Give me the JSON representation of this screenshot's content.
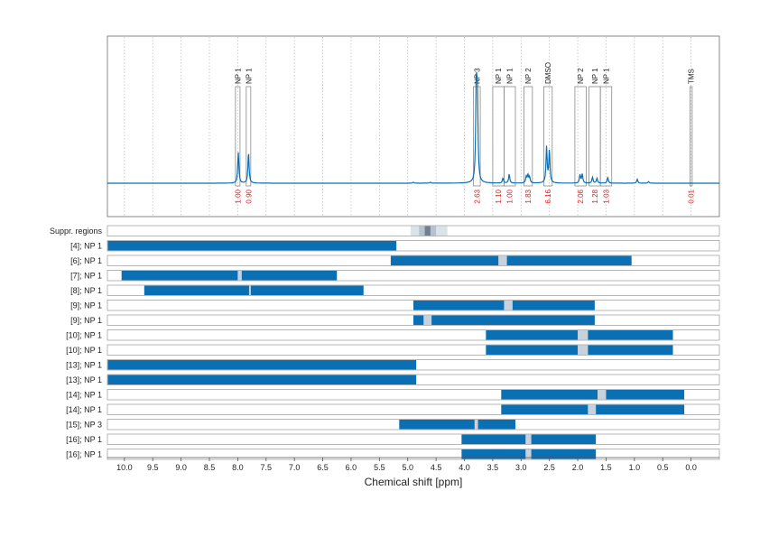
{
  "chart_data": {
    "type": "nmr-spectrum-with-range-bars",
    "xlabel": "Chemical shift [ppm]",
    "xlim": [
      10.3,
      -0.5
    ],
    "xticks": [
      10.0,
      9.5,
      9.0,
      8.5,
      8.0,
      7.5,
      7.0,
      6.5,
      6.0,
      5.5,
      5.0,
      4.5,
      4.0,
      3.5,
      3.0,
      2.5,
      2.0,
      1.5,
      1.0,
      0.5,
      0.0
    ],
    "x_reversed": true,
    "grid": "vertical dotted at each tick",
    "colors": {
      "spectrum": "#0a6fb3",
      "bar": "#0a6fb3",
      "suppressed": "#c8d2dc",
      "integral": "#e31a1c",
      "frame": "#888888"
    },
    "spectrum_peaks": [
      {
        "shift": 7.99,
        "height": 0.62
      },
      {
        "shift": 7.81,
        "height": 0.62
      },
      {
        "shift": 3.79,
        "height": 1.9
      },
      {
        "shift": 3.77,
        "height": 1.6
      },
      {
        "shift": 3.32,
        "height": 0.1
      },
      {
        "shift": 3.21,
        "height": 0.18
      },
      {
        "shift": 2.91,
        "height": 0.12
      },
      {
        "shift": 2.88,
        "height": 0.16
      },
      {
        "shift": 2.85,
        "height": 0.12
      },
      {
        "shift": 2.55,
        "height": 0.72
      },
      {
        "shift": 2.5,
        "height": 0.66
      },
      {
        "shift": 1.96,
        "height": 0.17
      },
      {
        "shift": 1.92,
        "height": 0.18
      },
      {
        "shift": 1.74,
        "height": 0.12
      },
      {
        "shift": 1.66,
        "height": 0.1
      },
      {
        "shift": 1.47,
        "height": 0.12
      },
      {
        "shift": 0.95,
        "height": 0.08
      },
      {
        "shift": 0.75,
        "height": 0.03
      },
      {
        "shift": 4.6,
        "height": 0.02
      },
      {
        "shift": 4.9,
        "height": 0.02
      }
    ],
    "annotations": [
      {
        "label": "NP 1",
        "integral": "1.00",
        "from": 8.04,
        "to": 7.96
      },
      {
        "label": "NP 1",
        "integral": "0.90",
        "from": 7.85,
        "to": 7.77
      },
      {
        "label": "NP 3",
        "integral": "2.63",
        "from": 3.84,
        "to": 3.72
      },
      {
        "label": "NP 1",
        "integral": "1.10",
        "from": 3.5,
        "to": 3.3
      },
      {
        "label": "NP 1",
        "integral": "1.00",
        "from": 3.3,
        "to": 3.1
      },
      {
        "label": "NP 2",
        "integral": "1.83",
        "from": 2.95,
        "to": 2.8
      },
      {
        "label": "DMSO",
        "integral": "6.16",
        "from": 2.6,
        "to": 2.45
      },
      {
        "label": "NP 2",
        "integral": "2.06",
        "from": 2.05,
        "to": 1.85
      },
      {
        "label": "NP 1",
        "integral": "1.28",
        "from": 1.8,
        "to": 1.6
      },
      {
        "label": "NP 1",
        "integral": "1.03",
        "from": 1.6,
        "to": 1.4
      },
      {
        "label": "TMS",
        "integral": "0.01",
        "from": 0.02,
        "to": -0.02
      }
    ],
    "suppressed_regions": {
      "label": "Suppr. regions",
      "light": [
        4.95,
        4.3
      ],
      "mid": [
        4.8,
        4.5
      ],
      "dark": [
        4.7,
        4.6
      ]
    },
    "range_rows": [
      {
        "label": "[4]; NP 1",
        "ranges": [
          [
            10.3,
            5.2
          ]
        ]
      },
      {
        "label": "[6]; NP 1",
        "ranges": [
          [
            5.3,
            3.4
          ],
          [
            3.25,
            1.05
          ]
        ]
      },
      {
        "label": "[7]; NP 1",
        "ranges": [
          [
            10.05,
            8.0
          ],
          [
            7.93,
            6.25
          ]
        ]
      },
      {
        "label": "[8]; NP 1",
        "ranges": [
          [
            9.65,
            7.8
          ],
          [
            7.77,
            5.78
          ]
        ]
      },
      {
        "label": "[9]; NP 1",
        "ranges": [
          [
            4.9,
            3.3
          ],
          [
            3.15,
            1.7
          ]
        ]
      },
      {
        "label": "[9]; NP 1",
        "ranges": [
          [
            4.9,
            4.72
          ],
          [
            4.58,
            1.7
          ]
        ]
      },
      {
        "label": "[10]; NP 1",
        "ranges": [
          [
            3.62,
            2.0
          ],
          [
            1.82,
            0.32
          ]
        ]
      },
      {
        "label": "[10]; NP 1",
        "ranges": [
          [
            3.62,
            2.0
          ],
          [
            1.82,
            0.32
          ]
        ]
      },
      {
        "label": "[13]; NP 1",
        "ranges": [
          [
            10.3,
            4.85
          ]
        ]
      },
      {
        "label": "[13]; NP 1",
        "ranges": [
          [
            10.3,
            4.85
          ]
        ]
      },
      {
        "label": "[14]; NP 1",
        "ranges": [
          [
            3.35,
            1.65
          ],
          [
            1.5,
            0.12
          ]
        ]
      },
      {
        "label": "[14]; NP 1",
        "ranges": [
          [
            3.35,
            1.82
          ],
          [
            1.68,
            0.12
          ]
        ]
      },
      {
        "label": "[15]; NP 3",
        "ranges": [
          [
            5.15,
            3.82
          ],
          [
            3.76,
            3.1
          ]
        ]
      },
      {
        "label": "[16]; NP 1",
        "ranges": [
          [
            4.05,
            2.92
          ],
          [
            2.82,
            1.68
          ]
        ]
      },
      {
        "label": "[16]; NP 1",
        "ranges": [
          [
            4.05,
            2.92
          ],
          [
            2.82,
            1.68
          ]
        ]
      }
    ]
  }
}
